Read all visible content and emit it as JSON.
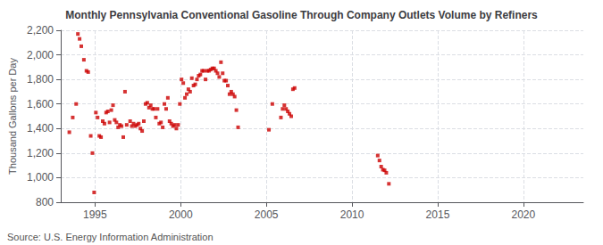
{
  "chart_data": {
    "type": "scatter",
    "title": "Monthly Pennsylvania Conventional Gasoline Through Company Outlets Volume by Refiners",
    "ylabel": "Thousand Gallons per Day",
    "annotations": [
      "Source: U.S. Energy Information Administration"
    ],
    "color": "#cc0000",
    "marker": "square",
    "grid": true,
    "xlim": [
      1993.0,
      2023.5
    ],
    "xticks": [
      1995,
      2000,
      2005,
      2010,
      2015,
      2020
    ],
    "ylim": [
      800,
      2200
    ],
    "yticks": [
      800,
      {
        "value": 1000,
        "label": "1,000"
      },
      {
        "value": 1200,
        "label": "1,200"
      },
      {
        "value": 1400,
        "label": "1,400"
      },
      {
        "value": 1600,
        "label": "1,600"
      },
      {
        "value": 1800,
        "label": "1,800"
      },
      {
        "value": 2000,
        "label": "2,000"
      },
      {
        "value": 2200,
        "label": "2,200"
      }
    ],
    "x": [
      1993.5,
      1993.7,
      1993.9,
      1994.0,
      1994.1,
      1994.2,
      1994.35,
      1994.5,
      1994.6,
      1994.75,
      1994.85,
      1994.95,
      1995.05,
      1995.15,
      1995.25,
      1995.35,
      1995.45,
      1995.55,
      1995.65,
      1995.75,
      1995.85,
      1995.95,
      1996.05,
      1996.15,
      1996.25,
      1996.35,
      1996.45,
      1996.55,
      1996.65,
      1996.75,
      1996.85,
      1997.05,
      1997.15,
      1997.25,
      1997.35,
      1997.45,
      1997.55,
      1997.65,
      1997.75,
      1997.85,
      1997.95,
      1998.05,
      1998.15,
      1998.25,
      1998.35,
      1998.45,
      1998.55,
      1998.65,
      1998.75,
      1998.85,
      1998.95,
      1999.05,
      1999.15,
      1999.25,
      1999.35,
      1999.45,
      1999.55,
      1999.65,
      1999.75,
      1999.85,
      1999.95,
      2000.05,
      2000.15,
      2000.25,
      2000.35,
      2000.45,
      2000.55,
      2000.65,
      2000.75,
      2000.85,
      2000.95,
      2001.05,
      2001.15,
      2001.25,
      2001.35,
      2001.45,
      2001.55,
      2001.65,
      2001.75,
      2001.85,
      2001.95,
      2002.05,
      2002.15,
      2002.25,
      2002.35,
      2002.45,
      2002.55,
      2002.65,
      2002.75,
      2002.85,
      2002.95,
      2003.05,
      2003.15,
      2003.25,
      2003.35,
      2005.15,
      2005.35,
      2005.85,
      2005.95,
      2006.05,
      2006.15,
      2006.25,
      2006.35,
      2006.45,
      2006.55,
      2006.65,
      2011.5,
      2011.6,
      2011.7,
      2011.8,
      2011.9,
      2012.0,
      2012.15
    ],
    "values": [
      1370,
      1490,
      1600,
      2170,
      2130,
      2070,
      1960,
      1870,
      1860,
      1340,
      1200,
      880,
      1530,
      1490,
      1340,
      1330,
      1460,
      1440,
      1530,
      1540,
      1450,
      1550,
      1590,
      1470,
      1450,
      1410,
      1430,
      1420,
      1330,
      1700,
      1430,
      1460,
      1420,
      1440,
      1420,
      1430,
      1440,
      1400,
      1380,
      1460,
      1600,
      1610,
      1570,
      1590,
      1560,
      1560,
      1490,
      1560,
      1440,
      1450,
      1410,
      1600,
      1560,
      1650,
      1460,
      1440,
      1420,
      1430,
      1400,
      1430,
      1600,
      1800,
      1770,
      1650,
      1680,
      1720,
      1700,
      1810,
      1750,
      1760,
      1800,
      1830,
      1840,
      1870,
      1870,
      1800,
      1870,
      1870,
      1880,
      1890,
      1890,
      1870,
      1850,
      1820,
      1940,
      1850,
      1790,
      1790,
      1750,
      1680,
      1700,
      1680,
      1660,
      1550,
      1410,
      1390,
      1600,
      1490,
      1560,
      1590,
      1560,
      1540,
      1520,
      1500,
      1720,
      1730,
      1180,
      1140,
      1090,
      1065,
      1060,
      1040,
      950
    ]
  }
}
